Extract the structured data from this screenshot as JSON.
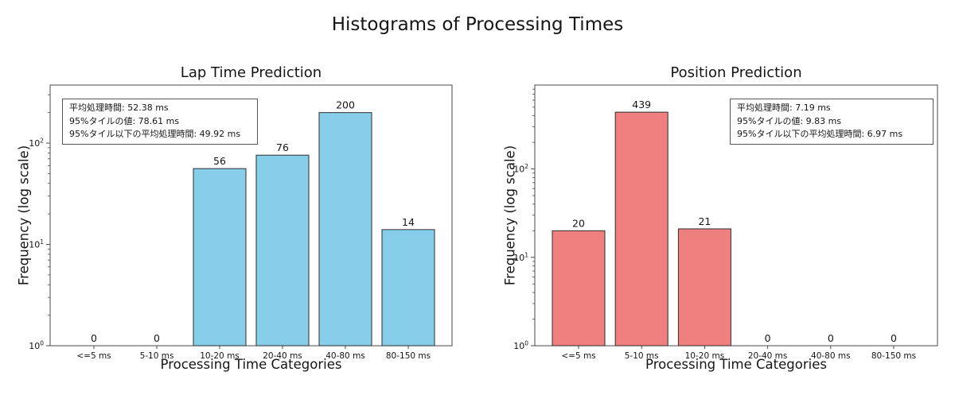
{
  "main_title": "Histograms of Processing Times",
  "colors": {
    "lap_bar_fill": "#87CEEB",
    "position_bar_fill": "#F08080",
    "bar_edge": "#2e2e2e",
    "axis_spine": "#4a4a4a",
    "text": "#151515"
  },
  "chart_data": [
    {
      "type": "bar",
      "title": "Lap Time Prediction",
      "categories": [
        "<=5 ms",
        "5-10 ms",
        "10-20 ms",
        "20-40 ms",
        "40-80 ms",
        "80-150 ms"
      ],
      "values": [
        0,
        0,
        56,
        76,
        200,
        14
      ],
      "xlabel": "Processing Time Categories",
      "ylabel": "Frequency (log scale)",
      "yscale": "log",
      "ylim": [
        1,
        374
      ],
      "yticks": [
        1,
        10,
        100
      ],
      "ytick_labels": [
        "10⁰",
        "10¹",
        "10²"
      ],
      "grid": false,
      "legend": null,
      "bar_color": "#87CEEB",
      "bar_edge_color": "#2e2e2e",
      "annotation": {
        "lines": [
          "平均処理時間: 52.38 ms",
          "95%タイルの値: 78.61 ms",
          "95%タイル以下の平均処理時間: 49.92 ms"
        ]
      }
    },
    {
      "type": "bar",
      "title": "Position Prediction",
      "categories": [
        "<=5 ms",
        "5-10 ms",
        "10-20 ms",
        "20-40 ms",
        "40-80 ms",
        "80-150 ms"
      ],
      "values": [
        20,
        439,
        21,
        0,
        0,
        0
      ],
      "xlabel": "Processing Time Categories",
      "ylabel": "Frequency (log scale)",
      "yscale": "log",
      "ylim": [
        1,
        890
      ],
      "yticks": [
        1,
        10,
        100
      ],
      "ytick_labels": [
        "10⁰",
        "10¹",
        "10²"
      ],
      "grid": false,
      "legend": null,
      "bar_color": "#F08080",
      "bar_edge_color": "#2e2e2e",
      "annotation": {
        "lines": [
          "平均処理時間: 7.19 ms",
          "95%タイルの値: 9.83 ms",
          "95%タイル以下の平均処理時間: 6.97 ms"
        ]
      }
    }
  ]
}
